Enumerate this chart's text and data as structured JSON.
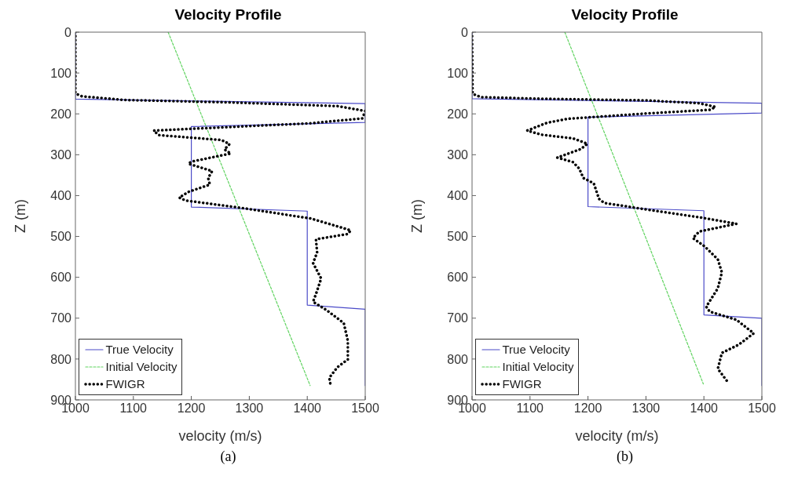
{
  "chart_data": [
    {
      "type": "line",
      "title": "Velocity Profile",
      "xlabel": "velocity (m/s)",
      "ylabel": "Z (m)",
      "xlim": [
        1000,
        1500
      ],
      "xticks": [
        1000,
        1100,
        1200,
        1300,
        1400,
        1500
      ],
      "ylim": [
        900,
        0
      ],
      "yticks": [
        0,
        100,
        200,
        300,
        400,
        500,
        600,
        700,
        800,
        900
      ],
      "legend": "bottom left",
      "grid": false,
      "annotations": [
        "(a)"
      ],
      "series": [
        {
          "name": "True Velocity",
          "color": "#4b4bc8",
          "line_style": "solid",
          "x": [
            1000,
            1000,
            1500,
            1500,
            1200,
            1200,
            1400,
            1400,
            1500,
            1500
          ],
          "values": [
            0,
            164,
            175,
            221,
            231,
            428,
            438,
            668,
            678,
            865
          ]
        },
        {
          "name": "Initial Velocity",
          "color": "#5fd35f",
          "line_style": "dashed",
          "x": [
            1160,
            1405
          ],
          "values": [
            0,
            865
          ]
        },
        {
          "name": "FWIGR",
          "color": "#000000",
          "line_style": "dotted",
          "x": [
            1000,
            1000,
            1011,
            1085,
            1268,
            1452,
            1500,
            1495,
            1406,
            1268,
            1135,
            1144,
            1252,
            1266,
            1257,
            1268,
            1200,
            1195,
            1236,
            1229,
            1232,
            1195,
            1179,
            1190,
            1291,
            1406,
            1475,
            1470,
            1415,
            1417,
            1410,
            1424,
            1415,
            1410,
            1433,
            1463,
            1470,
            1470,
            1452,
            1438,
            1440
          ],
          "values": [
            0,
            150,
            157,
            166,
            172,
            181,
            193,
            211,
            223,
            232,
            241,
            252,
            264,
            274,
            287,
            297,
            317,
            322,
            340,
            357,
            373,
            391,
            405,
            412,
            431,
            456,
            485,
            494,
            507,
            539,
            565,
            603,
            641,
            660,
            680,
            712,
            756,
            801,
            820,
            846,
            862
          ]
        }
      ]
    },
    {
      "type": "line",
      "title": "Velocity Profile",
      "xlabel": "velocity (m/s)",
      "ylabel": "Z (m)",
      "xlim": [
        1000,
        1500
      ],
      "xticks": [
        1000,
        1100,
        1200,
        1300,
        1400,
        1500
      ],
      "ylim": [
        900,
        0
      ],
      "yticks": [
        0,
        100,
        200,
        300,
        400,
        500,
        600,
        700,
        800,
        900
      ],
      "legend": "bottom left",
      "grid": false,
      "annotations": [
        "(b)"
      ],
      "series": [
        {
          "name": "True Velocity",
          "color": "#4b4bc8",
          "line_style": "solid",
          "x": [
            1000,
            1000,
            1500,
            1500,
            1200,
            1200,
            1400,
            1400,
            1500,
            1500
          ],
          "values": [
            0,
            163,
            174,
            198,
            208,
            427,
            437,
            692,
            700,
            865
          ]
        },
        {
          "name": "Initial Velocity",
          "color": "#5fd35f",
          "line_style": "dashed",
          "x": [
            1160,
            1399
          ],
          "values": [
            0,
            861
          ]
        },
        {
          "name": "FWIGR",
          "color": "#000000",
          "line_style": "dotted",
          "x": [
            1000,
            1001,
            1015,
            1120,
            1301,
            1392,
            1420,
            1411,
            1301,
            1165,
            1129,
            1095,
            1120,
            1174,
            1199,
            1188,
            1147,
            1174,
            1185,
            1192,
            1210,
            1219,
            1228,
            1301,
            1392,
            1456,
            1392,
            1381,
            1401,
            1424,
            1431,
            1424,
            1404,
            1410,
            1456,
            1486,
            1460,
            1431,
            1424,
            1442
          ],
          "values": [
            0,
            151,
            159,
            163,
            167,
            174,
            183,
            190,
            199,
            212,
            222,
            241,
            251,
            260,
            273,
            286,
            307,
            318,
            334,
            357,
            370,
            408,
            418,
            434,
            453,
            469,
            488,
            504,
            524,
            556,
            588,
            627,
            672,
            684,
            704,
            737,
            765,
            785,
            824,
            858
          ]
        }
      ]
    }
  ]
}
